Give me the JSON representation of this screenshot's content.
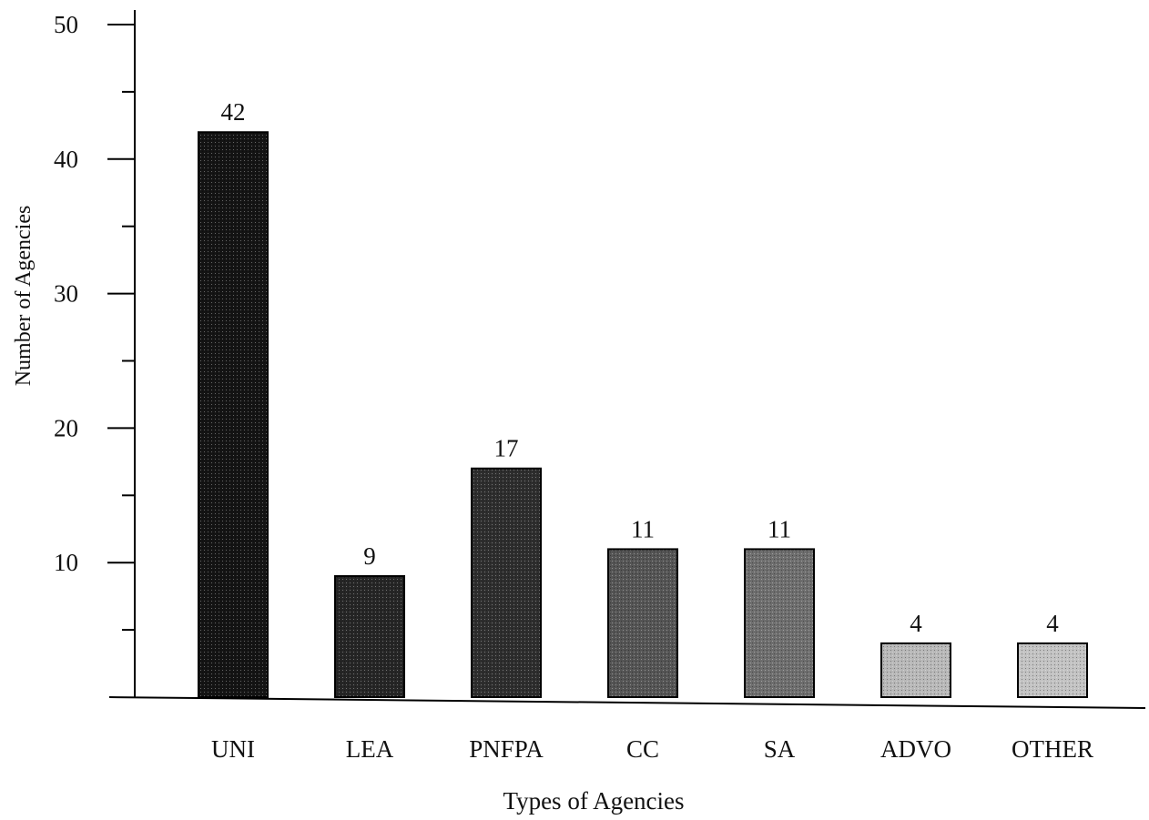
{
  "chart_data": {
    "type": "bar",
    "title": "",
    "xlabel": "Types of Agencies",
    "ylabel": "Number of Agencies",
    "categories": [
      "UNI",
      "LEA",
      "PNFPA",
      "CC",
      "SA",
      "ADVO",
      "OTHER"
    ],
    "values": [
      42,
      9,
      17,
      11,
      11,
      4,
      4
    ],
    "value_labels": [
      "42",
      "9",
      "17",
      "11",
      "11",
      "4",
      "4"
    ],
    "ylim": [
      0,
      50
    ],
    "y_ticks": [
      10,
      20,
      30,
      40,
      50
    ],
    "y_tick_labels": [
      "10",
      "20",
      "30",
      "40",
      "50"
    ],
    "y_minor_tick_step": 5,
    "grid": false,
    "legend": "none",
    "bar_fills": [
      "#141414",
      "#262626",
      "#2e2e2e",
      "#555555",
      "#6e6e6e",
      "#b8b8b8",
      "#c2c2c2"
    ],
    "bar_outline_color": "#000000",
    "axis_color": "#000000",
    "text_color": "#111111"
  }
}
